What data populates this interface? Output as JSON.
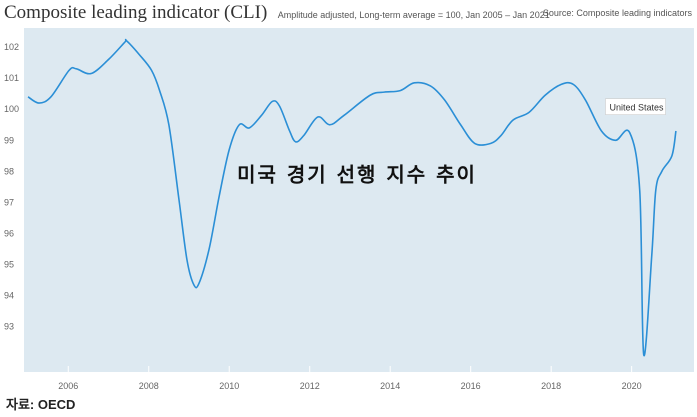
{
  "header": {
    "title": "Composite leading indicator (CLI)",
    "subtitle": "Amplitude adjusted, Long-term average = 100, Jan 2005 – Jan 2021",
    "source": "Source: Composite leading indicators"
  },
  "footer": "자료: OECD",
  "colors": {
    "background": "#dde9f1",
    "line": "#2b8fd6",
    "axis": "#9db5c0"
  },
  "chart_data": {
    "type": "line",
    "title": "Composite leading indicator (CLI)",
    "annotation": "미국 경기 선행 지수 추이",
    "xlabel": "",
    "ylabel": "",
    "xlim": [
      2004.9,
      2021.45
    ],
    "ylim": [
      91.8,
      102.55
    ],
    "x_ticks": [
      2006,
      2008,
      2010,
      2012,
      2014,
      2016,
      2018,
      2020
    ],
    "y_ticks": [
      93,
      94,
      95,
      96,
      97,
      98,
      99,
      100,
      101,
      102
    ],
    "grid": false,
    "series": [
      {
        "name": "United States",
        "x": [
          2005.0,
          2005.27,
          2005.57,
          2006.02,
          2006.2,
          2006.57,
          2007.0,
          2007.4,
          2007.45,
          2007.77,
          2008.07,
          2008.27,
          2008.5,
          2008.75,
          2008.95,
          2009.12,
          2009.25,
          2009.5,
          2009.75,
          2010.0,
          2010.25,
          2010.5,
          2010.8,
          2011.07,
          2011.25,
          2011.5,
          2011.65,
          2011.85,
          2012.2,
          2012.5,
          2012.85,
          2013.5,
          2013.85,
          2014.25,
          2014.6,
          2015.0,
          2015.35,
          2015.75,
          2016.1,
          2016.5,
          2016.75,
          2017.05,
          2017.45,
          2017.85,
          2018.25,
          2018.55,
          2018.85,
          2019.25,
          2019.6,
          2019.95,
          2020.2,
          2020.3,
          2020.5,
          2020.6,
          2020.75,
          2021.0,
          2021.1
        ],
        "y": [
          100.4,
          100.2,
          100.4,
          101.25,
          101.3,
          101.15,
          101.6,
          102.15,
          102.2,
          101.75,
          101.25,
          100.6,
          99.5,
          97.1,
          95.15,
          94.35,
          94.4,
          95.5,
          97.2,
          98.7,
          99.5,
          99.4,
          99.8,
          100.25,
          100.1,
          99.3,
          98.95,
          99.15,
          99.75,
          99.5,
          99.8,
          100.45,
          100.55,
          100.6,
          100.85,
          100.75,
          100.3,
          99.5,
          98.9,
          98.9,
          99.15,
          99.65,
          99.9,
          100.45,
          100.8,
          100.8,
          100.3,
          99.3,
          99.0,
          99.25,
          97.4,
          92.1,
          95.3,
          97.4,
          98.0,
          98.5,
          99.3
        ]
      }
    ]
  }
}
